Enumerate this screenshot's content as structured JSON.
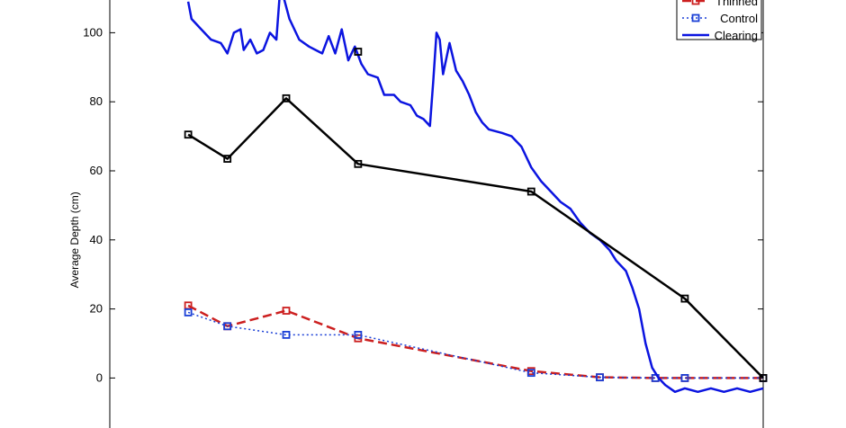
{
  "chart_data": {
    "type": "line",
    "ylabel": "Average Depth (cm)",
    "ylim": [
      -15,
      110
    ],
    "yticks": [
      0,
      20,
      40,
      60,
      80,
      100
    ],
    "xlim": [
      0,
      1
    ],
    "legend": {
      "placement": "top-right",
      "entries": [
        "Thinned",
        "Control",
        "Clearing"
      ]
    },
    "series": [
      {
        "name": "Thinned",
        "color": "#cc1f1f",
        "style": "dashed-square",
        "points": [
          [
            0.12,
            21
          ],
          [
            0.18,
            15
          ],
          [
            0.27,
            19.5
          ],
          [
            0.38,
            11.5
          ],
          [
            0.645,
            2
          ],
          [
            0.75,
            0.2
          ],
          [
            0.835,
            0
          ],
          [
            0.88,
            0
          ],
          [
            1.0,
            0
          ]
        ]
      },
      {
        "name": "Control",
        "color": "#1a3fd6",
        "style": "dotted-square",
        "points": [
          [
            0.12,
            19
          ],
          [
            0.18,
            15
          ],
          [
            0.27,
            12.5
          ],
          [
            0.38,
            12.5
          ],
          [
            0.645,
            1.5
          ],
          [
            0.75,
            0.2
          ],
          [
            0.835,
            0
          ],
          [
            0.88,
            0
          ],
          [
            1.0,
            0
          ]
        ]
      },
      {
        "name": "Clearing",
        "color": "#0b14e0",
        "style": "solid",
        "points": [
          [
            0.12,
            109
          ],
          [
            0.125,
            104
          ],
          [
            0.14,
            101
          ],
          [
            0.155,
            98
          ],
          [
            0.17,
            97
          ],
          [
            0.18,
            94
          ],
          [
            0.19,
            100
          ],
          [
            0.2,
            101
          ],
          [
            0.205,
            95
          ],
          [
            0.215,
            98
          ],
          [
            0.225,
            94
          ],
          [
            0.235,
            95
          ],
          [
            0.245,
            100
          ],
          [
            0.255,
            98
          ],
          [
            0.26,
            111
          ],
          [
            0.265,
            111
          ],
          [
            0.275,
            104
          ],
          [
            0.29,
            98
          ],
          [
            0.305,
            96
          ],
          [
            0.315,
            95
          ],
          [
            0.325,
            94
          ],
          [
            0.335,
            99
          ],
          [
            0.345,
            94
          ],
          [
            0.355,
            101
          ],
          [
            0.365,
            92
          ],
          [
            0.375,
            96
          ],
          [
            0.385,
            91
          ],
          [
            0.395,
            88
          ],
          [
            0.41,
            87
          ],
          [
            0.42,
            82
          ],
          [
            0.435,
            82
          ],
          [
            0.445,
            80
          ],
          [
            0.46,
            79
          ],
          [
            0.47,
            76
          ],
          [
            0.48,
            75
          ],
          [
            0.49,
            73
          ],
          [
            0.495,
            86
          ],
          [
            0.5,
            100
          ],
          [
            0.505,
            98
          ],
          [
            0.51,
            88
          ],
          [
            0.52,
            97
          ],
          [
            0.53,
            89
          ],
          [
            0.54,
            86
          ],
          [
            0.55,
            82
          ],
          [
            0.56,
            77
          ],
          [
            0.57,
            74
          ],
          [
            0.58,
            72
          ],
          [
            0.6,
            71
          ],
          [
            0.615,
            70
          ],
          [
            0.63,
            67
          ],
          [
            0.645,
            61
          ],
          [
            0.66,
            57
          ],
          [
            0.675,
            54
          ],
          [
            0.69,
            51
          ],
          [
            0.705,
            49
          ],
          [
            0.72,
            45
          ],
          [
            0.735,
            42
          ],
          [
            0.75,
            40
          ],
          [
            0.765,
            37
          ],
          [
            0.775,
            34
          ],
          [
            0.79,
            31
          ],
          [
            0.8,
            26
          ],
          [
            0.81,
            20
          ],
          [
            0.82,
            10
          ],
          [
            0.83,
            3
          ],
          [
            0.84,
            0
          ],
          [
            0.85,
            -2
          ],
          [
            0.865,
            -4
          ],
          [
            0.88,
            -3
          ],
          [
            0.9,
            -4
          ],
          [
            0.92,
            -3
          ],
          [
            0.94,
            -4
          ],
          [
            0.96,
            -3
          ],
          [
            0.98,
            -4
          ],
          [
            1.0,
            -3
          ]
        ]
      },
      {
        "name": "",
        "color": "#000000",
        "style": "solid-square",
        "points": [
          [
            0.12,
            70.5
          ],
          [
            0.18,
            63.5
          ],
          [
            0.27,
            81
          ],
          [
            0.38,
            62
          ],
          [
            0.645,
            54
          ],
          [
            0.88,
            23
          ],
          [
            1.0,
            0
          ]
        ]
      }
    ],
    "extra_markers": [
      {
        "color": "#000000",
        "point": [
          0.38,
          94.5
        ]
      }
    ]
  }
}
